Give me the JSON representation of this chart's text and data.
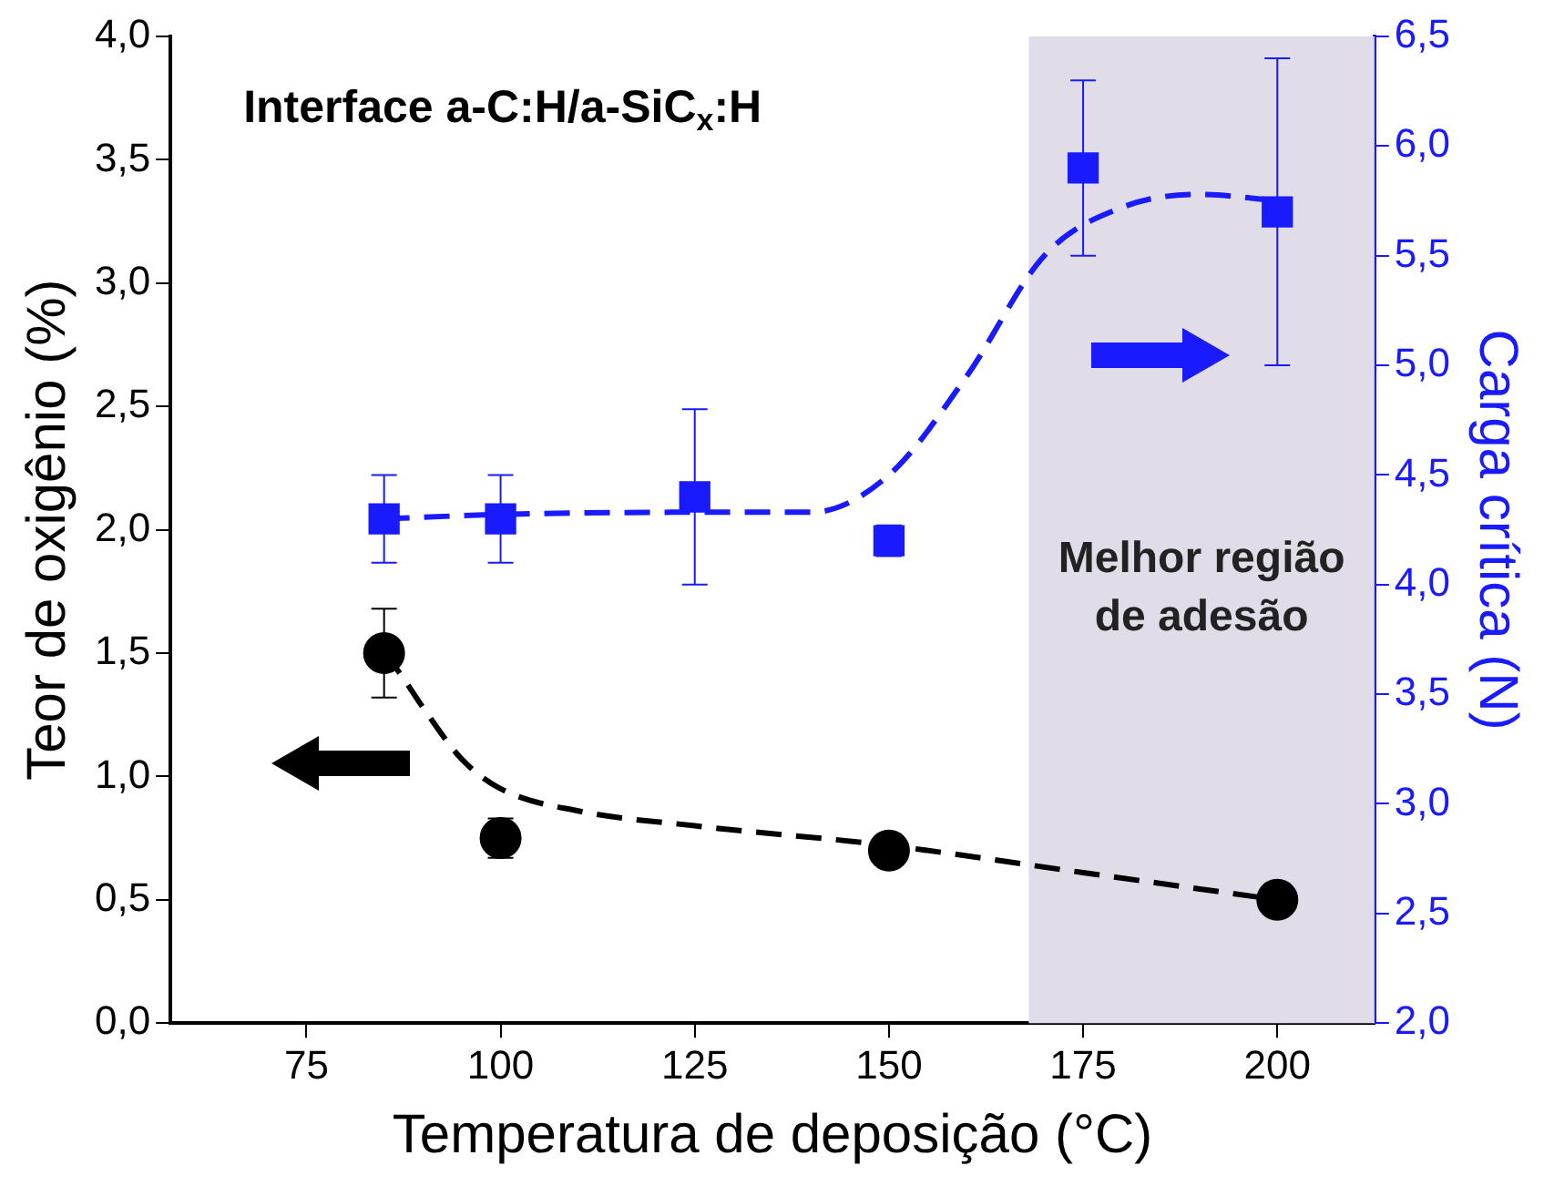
{
  "chart_data": {
    "type": "scatter",
    "xlabel": "Temperatura de deposição (°C)",
    "ylabel": "Teor de oxigênio (%)",
    "y2label": "Carga crítica (N)",
    "annotations": [
      "Interface a-C:H/a-SiC$_{x}$:H"
    ],
    "xlim": [
      57.5,
      212.5
    ],
    "xticks": [
      75,
      100,
      125,
      150,
      175,
      200
    ],
    "ylim": [
      0,
      4
    ],
    "yticks": [
      {
        "value": 0,
        "label": "0,0"
      },
      {
        "value": 0.5,
        "label": "0,5"
      },
      {
        "value": 1,
        "label": "1,0"
      },
      {
        "value": 1.5,
        "label": "1,5"
      },
      {
        "value": 2,
        "label": "2,0"
      },
      {
        "value": 2.5,
        "label": "2,5"
      },
      {
        "value": 3,
        "label": "3,0"
      },
      {
        "value": 3.5,
        "label": "3,5"
      },
      {
        "value": 4,
        "label": "4,0"
      }
    ],
    "y2lim": [
      2,
      6.5
    ],
    "y2ticks": [
      {
        "value": 2,
        "label": "2,0"
      },
      {
        "value": 2.5,
        "label": "2,5"
      },
      {
        "value": 3,
        "label": "3,0"
      },
      {
        "value": 3.5,
        "label": "3,5"
      },
      {
        "value": 4,
        "label": "4,0"
      },
      {
        "value": 4.5,
        "label": "4,5"
      },
      {
        "value": 5,
        "label": "5,0"
      },
      {
        "value": 5.5,
        "label": "5,5"
      },
      {
        "value": 6,
        "label": "6,0"
      },
      {
        "value": 6.5,
        "label": "6,5"
      }
    ],
    "bands": [
      {
        "axis": "x",
        "from": 168,
        "to": 212.5,
        "label": "Melhor região de adesão",
        "color": "#e0dce8"
      }
    ],
    "legend": false,
    "series": [
      {
        "type": "line",
        "color": "#000000",
        "line_style": "dashed",
        "marker": "none",
        "x": [
          85,
          87,
          90,
          95,
          100,
          110,
          125,
          150,
          175,
          200
        ],
        "values": [
          1.5,
          1.42,
          1.28,
          1.07,
          0.95,
          0.86,
          0.8,
          0.72,
          0.61,
          0.5
        ]
      },
      {
        "type": "line",
        "color": "#1a1aff",
        "axis": "y2",
        "line_style": "dashed",
        "marker": "none",
        "x": [
          85,
          100,
          125,
          140,
          150,
          160,
          170,
          180,
          190,
          200
        ],
        "values": [
          4.3,
          4.32,
          4.33,
          4.33,
          4.5,
          4.95,
          5.5,
          5.72,
          5.78,
          5.75
        ]
      },
      {
        "color": "#000000",
        "marker": "circle",
        "x": [
          85,
          100,
          150,
          200
        ],
        "values": [
          1.5,
          0.75,
          0.7,
          0.5
        ],
        "errors": [
          0.18,
          0.08,
          0.03,
          null
        ]
      },
      {
        "color": "#1a1aff",
        "axis": "y2",
        "marker": "square",
        "x": [
          85,
          100,
          125,
          150,
          175,
          200
        ],
        "values": [
          4.3,
          4.3,
          4.4,
          4.2,
          5.9,
          5.7
        ],
        "errors": [
          0.2,
          0.2,
          0.4,
          0.07,
          0.4,
          0.7
        ]
      }
    ]
  }
}
